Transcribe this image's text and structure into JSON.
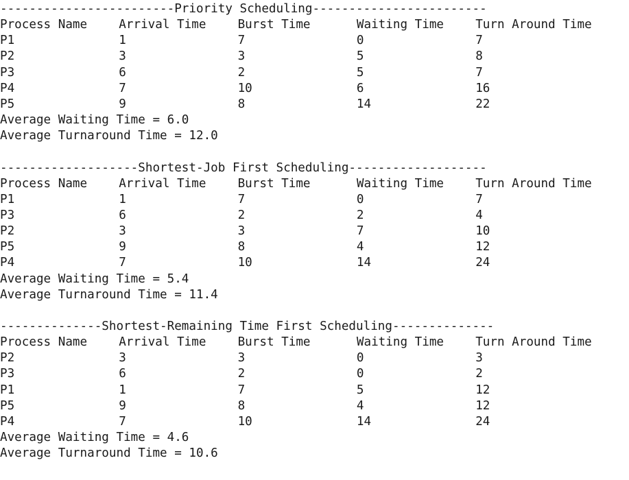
{
  "sections": [
    {
      "heading": "------------------------Priority Scheduling------------------------",
      "header": [
        "Process Name",
        "Arrival Time",
        "Burst Time",
        "Waiting Time",
        "Turn Around Time"
      ],
      "rows": [
        [
          "P1",
          "1",
          "7",
          "0",
          "7"
        ],
        [
          "P2",
          "3",
          "3",
          "5",
          "8"
        ],
        [
          "P3",
          "6",
          "2",
          "5",
          "7"
        ],
        [
          "P4",
          "7",
          "10",
          "6",
          "16"
        ],
        [
          "P5",
          "9",
          "8",
          "14",
          "22"
        ]
      ],
      "averages": [
        "Average Waiting Time = 6.0",
        "Average Turnaround Time = 12.0"
      ]
    },
    {
      "heading": "-------------------Shortest-Job First Scheduling-------------------",
      "header": [
        "Process Name",
        "Arrival Time",
        "Burst Time",
        "Waiting Time",
        "Turn Around Time"
      ],
      "rows": [
        [
          "P1",
          "1",
          "7",
          "0",
          "7"
        ],
        [
          "P3",
          "6",
          "2",
          "2",
          "4"
        ],
        [
          "P2",
          "3",
          "3",
          "7",
          "10"
        ],
        [
          "P5",
          "9",
          "8",
          "4",
          "12"
        ],
        [
          "P4",
          "7",
          "10",
          "14",
          "24"
        ]
      ],
      "averages": [
        "Average Waiting Time = 5.4",
        "Average Turnaround Time = 11.4"
      ]
    },
    {
      "heading": "--------------Shortest-Remaining Time First Scheduling--------------",
      "header": [
        "Process Name",
        "Arrival Time",
        "Burst Time",
        "Waiting Time",
        "Turn Around Time"
      ],
      "rows": [
        [
          "P2",
          "3",
          "3",
          "0",
          "3"
        ],
        [
          "P3",
          "6",
          "2",
          "0",
          "2"
        ],
        [
          "P1",
          "1",
          "7",
          "5",
          "12"
        ],
        [
          "P5",
          "9",
          "8",
          "4",
          "12"
        ],
        [
          "P4",
          "7",
          "10",
          "14",
          "24"
        ]
      ],
      "averages": [
        "Average Waiting Time = 4.6",
        "Average Turnaround Time = 10.6"
      ]
    }
  ]
}
